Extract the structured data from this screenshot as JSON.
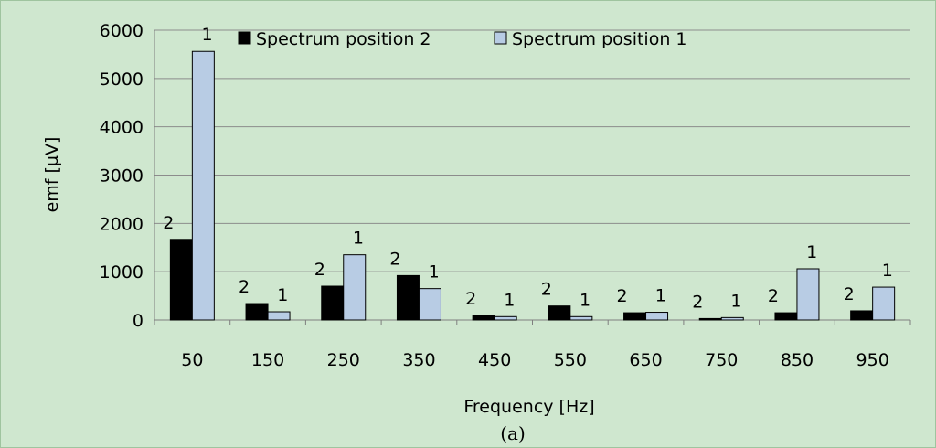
{
  "chart_data": {
    "type": "bar",
    "categories": [
      "50",
      "150",
      "250",
      "350",
      "450",
      "550",
      "650",
      "750",
      "850",
      "950"
    ],
    "series": [
      {
        "name": "Spectrum position 2",
        "label": "2",
        "color": "#000000",
        "values": [
          1670,
          340,
          700,
          920,
          90,
          290,
          150,
          30,
          150,
          190
        ]
      },
      {
        "name": "Spectrum position 1",
        "label": "1",
        "color": "#b8cce4",
        "values": [
          5560,
          170,
          1350,
          650,
          70,
          70,
          160,
          50,
          1060,
          680
        ]
      }
    ],
    "xlabel": "Frequency  [Hz]",
    "ylabel": "emf [µV]",
    "ylim": [
      0,
      6000
    ],
    "yticks": [
      0,
      1000,
      2000,
      3000,
      4000,
      5000,
      6000
    ],
    "grid": true,
    "legend": "top",
    "caption": "(a)"
  }
}
